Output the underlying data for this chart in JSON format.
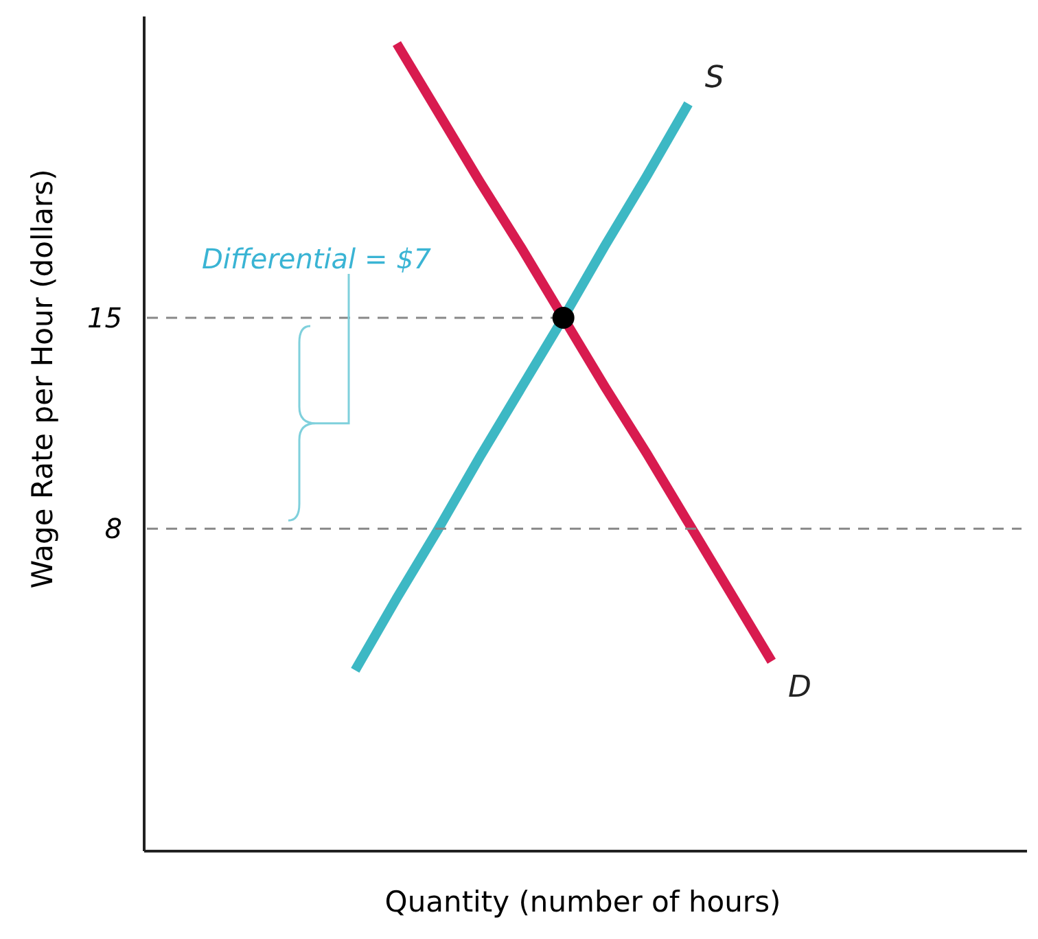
{
  "chart_data": {
    "type": "line",
    "xlabel": "Quantity (number of hours)",
    "ylabel": "Wage Rate per Hour (dollars)",
    "categories": [
      null,
      null,
      null,
      null,
      null,
      null,
      null,
      null,
      null,
      null,
      null,
      null,
      null,
      null,
      null,
      null,
      null,
      null,
      null,
      null,
      null,
      null
    ],
    "series": [
      {
        "name": "S",
        "color": "#3db8c4",
        "values": [
          null,
          null,
          null,
          null,
          null,
          3.3,
          5.7,
          8.0,
          10.4,
          12.7,
          15.0,
          17.4,
          19.7,
          22.1,
          null,
          null,
          null,
          null,
          null,
          null,
          null,
          null
        ]
      },
      {
        "name": "D",
        "color": "#d81b4f",
        "values": [
          null,
          null,
          null,
          null,
          null,
          null,
          24.1,
          21.8,
          19.5,
          17.3,
          15.0,
          12.7,
          10.5,
          8.2,
          5.9,
          3.6,
          null,
          null,
          null,
          null,
          null,
          null
        ]
      },
      {
        "color": "#888888",
        "line_style": "dashed",
        "values": [
          15,
          15,
          15,
          15,
          15,
          15,
          15,
          15,
          15,
          15,
          15,
          null,
          null,
          null,
          null,
          null,
          null,
          null,
          null,
          null,
          null,
          null
        ]
      },
      {
        "color": "#888888",
        "line_style": "dashed",
        "values": [
          8,
          8,
          8,
          8,
          8,
          8,
          8,
          8,
          8,
          8,
          8,
          8,
          8,
          8,
          8,
          8,
          8,
          8,
          8,
          8,
          8,
          8
        ]
      },
      {
        "type": "scatter",
        "marker": "circle",
        "color": "#000000",
        "values": [
          null,
          null,
          null,
          null,
          null,
          null,
          null,
          null,
          null,
          null,
          15.0,
          null,
          null,
          null,
          null,
          null,
          null,
          null,
          null,
          null,
          null,
          null
        ]
      }
    ],
    "ylim": [
      -2.7,
      25
    ],
    "yticks": [
      8,
      15
    ],
    "tick_labels": "y",
    "grid": false,
    "marker": "none",
    "line_style": "solid",
    "annotations": [
      "Differential = $7"
    ]
  }
}
